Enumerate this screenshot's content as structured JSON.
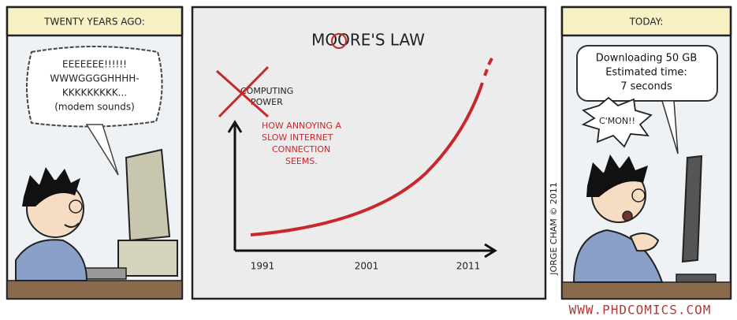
{
  "panels": [
    {
      "header": "TWENTY YEARS AGO:",
      "speech": [
        "EEEEEEE!!!!!!",
        "WWWGGGGHHHH-",
        "KKKKKKKKK...",
        "(modem sounds)"
      ]
    },
    {
      "title": "MOORE'S LAW",
      "crossed_label": [
        "COMPUTING",
        "POWER"
      ],
      "red_label": [
        "HOW ANNOYING A",
        "SLOW INTERNET",
        "CONNECTION",
        "SEEMS."
      ],
      "x_labels": [
        "1991",
        "2001",
        "2011"
      ],
      "signature": "JORGE CHAM © 2011"
    },
    {
      "header": "TODAY:",
      "speech": [
        "Downloading 50 GB",
        "Estimated time:",
        "7 seconds"
      ],
      "exclamation": "C'MON!!"
    }
  ],
  "footer": "WWW.PHDCOMICS.COM"
}
